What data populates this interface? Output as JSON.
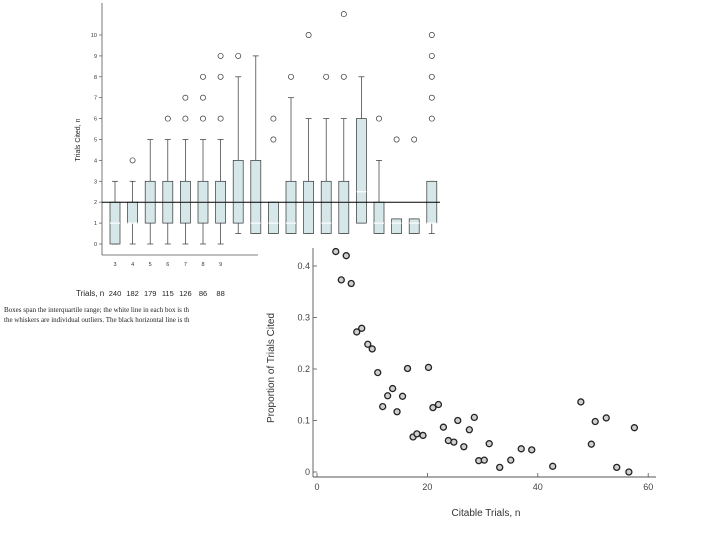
{
  "caption": {
    "line1": "Boxes span the interquartile range; the white line in each box is th",
    "line2": "the whiskers are individual outliers. The black horizontal line is th"
  },
  "chart_data": [
    {
      "type": "box",
      "ylabel": "Trials Cited, n",
      "ylim": [
        0,
        11
      ],
      "yticks": [
        0,
        1,
        2,
        3,
        4,
        5,
        6,
        7,
        8,
        9,
        10
      ],
      "reference_line": 2,
      "trials_label": "Trials, n",
      "grid": false,
      "boxes": [
        {
          "x": "3",
          "q1": 0,
          "median": 1,
          "q3": 2,
          "whisker_low": 0,
          "whisker_high": 3,
          "outliers": [],
          "trials": "240"
        },
        {
          "x": "4",
          "q1": 1,
          "median": 1,
          "q3": 2,
          "whisker_low": 0,
          "whisker_high": 3,
          "outliers": [
            4
          ],
          "trials": "182"
        },
        {
          "x": "5",
          "q1": 1,
          "median": 2,
          "q3": 3,
          "whisker_low": 0,
          "whisker_high": 5,
          "outliers": [],
          "trials": "179"
        },
        {
          "x": "6",
          "q1": 1,
          "median": 2,
          "q3": 3,
          "whisker_low": 0,
          "whisker_high": 5,
          "outliers": [
            6
          ],
          "trials": "115"
        },
        {
          "x": "7",
          "q1": 1,
          "median": 2,
          "q3": 3,
          "whisker_low": 0,
          "whisker_high": 5,
          "outliers": [
            6,
            7
          ],
          "trials": "126"
        },
        {
          "x": "8",
          "q1": 1,
          "median": 2,
          "q3": 3,
          "whisker_low": 0,
          "whisker_high": 5,
          "outliers": [
            6,
            7,
            8
          ],
          "trials": "86"
        },
        {
          "x": "9",
          "q1": 1,
          "median": 2,
          "q3": 3,
          "whisker_low": 0,
          "whisker_high": 5,
          "outliers": [
            6,
            8,
            9
          ],
          "trials": "88"
        },
        {
          "x": "10",
          "q1": 1,
          "median": 2,
          "q3": 4,
          "whisker_low": 0.5,
          "whisker_high": 8,
          "outliers": [
            9
          ],
          "trials": ""
        },
        {
          "x": "11",
          "q1": 0.5,
          "median": 1,
          "q3": 4,
          "whisker_low": 0.5,
          "whisker_high": 9,
          "outliers": [],
          "trials": ""
        },
        {
          "x": "12",
          "q1": 0.5,
          "median": 1,
          "q3": 2,
          "whisker_low": 0.5,
          "whisker_high": 2,
          "outliers": [
            5,
            6
          ],
          "trials": ""
        },
        {
          "x": "13",
          "q1": 0.5,
          "median": 1,
          "q3": 3,
          "whisker_low": 0.5,
          "whisker_high": 7,
          "outliers": [
            8
          ],
          "trials": ""
        },
        {
          "x": "14",
          "q1": 0.5,
          "median": 2,
          "q3": 3,
          "whisker_low": 0.5,
          "whisker_high": 6,
          "outliers": [
            10
          ],
          "trials": ""
        },
        {
          "x": "15",
          "q1": 0.5,
          "median": 1,
          "q3": 3,
          "whisker_low": 0.5,
          "whisker_high": 6,
          "outliers": [
            8
          ],
          "trials": ""
        },
        {
          "x": "16",
          "q1": 0.5,
          "median": 2,
          "q3": 3,
          "whisker_low": 0.5,
          "whisker_high": 6,
          "outliers": [
            8,
            11
          ],
          "trials": ""
        },
        {
          "x": "17",
          "q1": 1,
          "median": 2.5,
          "q3": 6,
          "whisker_low": 1,
          "whisker_high": 8,
          "outliers": [],
          "trials": ""
        },
        {
          "x": "18",
          "q1": 0.5,
          "median": 1,
          "q3": 2,
          "whisker_low": 0.5,
          "whisker_high": 4,
          "outliers": [
            6
          ],
          "trials": ""
        },
        {
          "x": "19",
          "q1": 0.5,
          "median": 1,
          "q3": 1.2,
          "whisker_low": 0.5,
          "whisker_high": 1.2,
          "outliers": [
            5
          ],
          "trials": ""
        },
        {
          "x": "20",
          "q1": 0.5,
          "median": 1,
          "q3": 1.2,
          "whisker_low": 0.5,
          "whisker_high": 1.2,
          "outliers": [
            5
          ],
          "trials": ""
        },
        {
          "x": "21",
          "q1": 1,
          "median": 1,
          "q3": 3,
          "whisker_low": 0.5,
          "whisker_high": 3,
          "outliers": [
            6,
            7,
            8,
            9,
            10
          ],
          "trials": ""
        }
      ],
      "visible_tick_labels": [
        "3",
        "4",
        "5",
        "6",
        "7",
        "8",
        "9"
      ]
    },
    {
      "type": "scatter",
      "xlabel": "Citable Trials, n",
      "ylabel": "Proportion of Trials Cited",
      "xlim": [
        0,
        60
      ],
      "ylim": [
        0,
        0.43
      ],
      "xticks": [
        "0",
        "20",
        "40",
        "60"
      ],
      "yticks": [
        "0",
        "0.1",
        "0.2",
        "0.3",
        "0.4"
      ],
      "grid": false,
      "points": [
        [
          3.4,
          0.428
        ],
        [
          4.4,
          0.373
        ],
        [
          5.3,
          0.42
        ],
        [
          6.2,
          0.366
        ],
        [
          7.2,
          0.272
        ],
        [
          8.1,
          0.279
        ],
        [
          9.2,
          0.248
        ],
        [
          10.0,
          0.239
        ],
        [
          11.0,
          0.193
        ],
        [
          11.9,
          0.127
        ],
        [
          12.8,
          0.148
        ],
        [
          13.7,
          0.162
        ],
        [
          14.5,
          0.117
        ],
        [
          15.5,
          0.147
        ],
        [
          16.4,
          0.201
        ],
        [
          17.4,
          0.068
        ],
        [
          18.1,
          0.074
        ],
        [
          19.2,
          0.071
        ],
        [
          20.2,
          0.203
        ],
        [
          21.0,
          0.125
        ],
        [
          22.0,
          0.131
        ],
        [
          22.9,
          0.087
        ],
        [
          23.8,
          0.061
        ],
        [
          24.8,
          0.058
        ],
        [
          25.5,
          0.1
        ],
        [
          26.6,
          0.049
        ],
        [
          27.6,
          0.082
        ],
        [
          28.5,
          0.106
        ],
        [
          29.3,
          0.022
        ],
        [
          30.3,
          0.023
        ],
        [
          31.2,
          0.055
        ],
        [
          33.1,
          0.009
        ],
        [
          35.1,
          0.023
        ],
        [
          37.0,
          0.045
        ],
        [
          38.9,
          0.043
        ],
        [
          42.7,
          0.011
        ],
        [
          47.8,
          0.136
        ],
        [
          49.7,
          0.054
        ],
        [
          50.4,
          0.098
        ],
        [
          52.4,
          0.105
        ],
        [
          54.3,
          0.009
        ],
        [
          56.5,
          0.0
        ],
        [
          57.5,
          0.086
        ]
      ]
    }
  ]
}
